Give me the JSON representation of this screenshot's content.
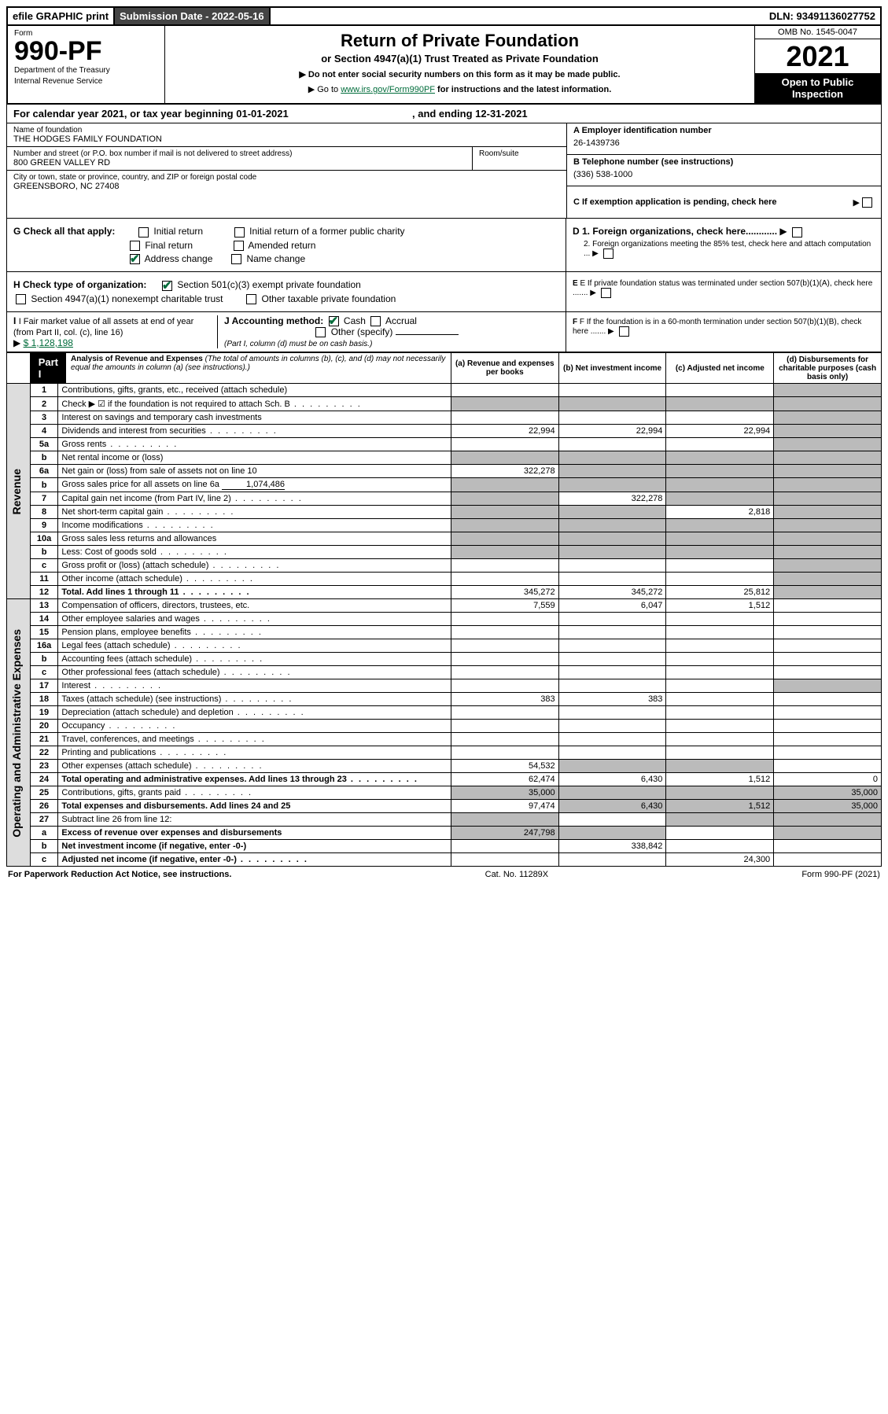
{
  "topbar": {
    "efile": "efile GRAPHIC print",
    "submission_label": "Submission Date - 2022-05-16",
    "dln": "DLN: 93491136027752"
  },
  "header": {
    "form_word": "Form",
    "form_number": "990-PF",
    "dept": "Department of the Treasury",
    "irs": "Internal Revenue Service",
    "title": "Return of Private Foundation",
    "subtitle": "or Section 4947(a)(1) Trust Treated as Private Foundation",
    "note1": "▶ Do not enter social security numbers on this form as it may be made public.",
    "note2_prefix": "▶ Go to ",
    "note2_link": "www.irs.gov/Form990PF",
    "note2_suffix": " for instructions and the latest information.",
    "omb": "OMB No. 1545-0047",
    "year": "2021",
    "open": "Open to Public Inspection"
  },
  "calendar": {
    "text_prefix": "For calendar year 2021, or tax year beginning ",
    "begin": "01-01-2021",
    "mid": " , and ending ",
    "end": "12-31-2021"
  },
  "id": {
    "name_lbl": "Name of foundation",
    "name": "THE HODGES FAMILY FOUNDATION",
    "addr_lbl": "Number and street (or P.O. box number if mail is not delivered to street address)",
    "addr": "800 GREEN VALLEY RD",
    "room_lbl": "Room/suite",
    "city_lbl": "City or town, state or province, country, and ZIP or foreign postal code",
    "city": "GREENSBORO, NC  27408",
    "a_lbl": "A Employer identification number",
    "a_val": "26-1439736",
    "b_lbl": "B Telephone number (see instructions)",
    "b_val": "(336) 538-1000",
    "c_lbl": "C If exemption application is pending, check here"
  },
  "checks": {
    "g_lbl": "G Check all that apply:",
    "g_initial": "Initial return",
    "g_initial_former": "Initial return of a former public charity",
    "g_final": "Final return",
    "g_amended": "Amended return",
    "g_address": "Address change",
    "g_name": "Name change",
    "h_lbl": "H Check type of organization:",
    "h_501c3": "Section 501(c)(3) exempt private foundation",
    "h_4947": "Section 4947(a)(1) nonexempt charitable trust",
    "h_other": "Other taxable private foundation",
    "i_lbl": "I Fair market value of all assets at end of year (from Part II, col. (c), line 16)",
    "i_val": "$  1,128,198",
    "j_lbl": "J Accounting method:",
    "j_cash": "Cash",
    "j_accrual": "Accrual",
    "j_other": "Other (specify)",
    "j_note": "(Part I, column (d) must be on cash basis.)",
    "d1": "D 1. Foreign organizations, check here............",
    "d2": "2. Foreign organizations meeting the 85% test, check here and attach computation ...",
    "e": "E  If private foundation status was terminated under section 507(b)(1)(A), check here .......",
    "f": "F  If the foundation is in a 60-month termination under section 507(b)(1)(B), check here ......."
  },
  "part1": {
    "tab": "Part I",
    "title": "Analysis of Revenue and Expenses",
    "note": "(The total of amounts in columns (b), (c), and (d) may not necessarily equal the amounts in column (a) (see instructions).)",
    "col_a": "(a) Revenue and expenses per books",
    "col_b": "(b) Net investment income",
    "col_c": "(c) Adjusted net income",
    "col_d": "(d) Disbursements for charitable purposes (cash basis only)",
    "side_rev": "Revenue",
    "side_exp": "Operating and Administrative Expenses"
  },
  "rows": [
    {
      "n": "1",
      "d": "Contributions, gifts, grants, etc., received (attach schedule)"
    },
    {
      "n": "2",
      "d": "Check ▶ ☑ if the foundation is not required to attach Sch. B",
      "checked": true,
      "dots": true,
      "bold_part": "not"
    },
    {
      "n": "3",
      "d": "Interest on savings and temporary cash investments"
    },
    {
      "n": "4",
      "d": "Dividends and interest from securities",
      "dots": true,
      "a": "22,994",
      "b": "22,994",
      "c": "22,994"
    },
    {
      "n": "5a",
      "d": "Gross rents",
      "dots": true
    },
    {
      "n": "b",
      "d": "Net rental income or (loss)",
      "underline": true
    },
    {
      "n": "6a",
      "d": "Net gain or (loss) from sale of assets not on line 10",
      "a": "322,278"
    },
    {
      "n": "b",
      "d": "Gross sales price for all assets on line 6a",
      "inline_val": "1,074,486"
    },
    {
      "n": "7",
      "d": "Capital gain net income (from Part IV, line 2)",
      "dots": true,
      "b": "322,278"
    },
    {
      "n": "8",
      "d": "Net short-term capital gain",
      "dots": true,
      "c": "2,818"
    },
    {
      "n": "9",
      "d": "Income modifications",
      "dots": true
    },
    {
      "n": "10a",
      "d": "Gross sales less returns and allowances",
      "underline": true
    },
    {
      "n": "b",
      "d": "Less: Cost of goods sold",
      "dots": true,
      "underline": true
    },
    {
      "n": "c",
      "d": "Gross profit or (loss) (attach schedule)",
      "dots": true
    },
    {
      "n": "11",
      "d": "Other income (attach schedule)",
      "dots": true
    },
    {
      "n": "12",
      "d": "Total. Add lines 1 through 11",
      "dots": true,
      "bold": true,
      "a": "345,272",
      "b": "345,272",
      "c": "25,812"
    },
    {
      "n": "13",
      "d": "Compensation of officers, directors, trustees, etc.",
      "a": "7,559",
      "b": "6,047",
      "c": "1,512"
    },
    {
      "n": "14",
      "d": "Other employee salaries and wages",
      "dots": true
    },
    {
      "n": "15",
      "d": "Pension plans, employee benefits",
      "dots": true
    },
    {
      "n": "16a",
      "d": "Legal fees (attach schedule)",
      "dots": true
    },
    {
      "n": "b",
      "d": "Accounting fees (attach schedule)",
      "dots": true
    },
    {
      "n": "c",
      "d": "Other professional fees (attach schedule)",
      "dots": true
    },
    {
      "n": "17",
      "d": "Interest",
      "dots": true
    },
    {
      "n": "18",
      "d": "Taxes (attach schedule) (see instructions)",
      "dots": true,
      "a": "383",
      "b": "383"
    },
    {
      "n": "19",
      "d": "Depreciation (attach schedule) and depletion",
      "dots": true
    },
    {
      "n": "20",
      "d": "Occupancy",
      "dots": true
    },
    {
      "n": "21",
      "d": "Travel, conferences, and meetings",
      "dots": true
    },
    {
      "n": "22",
      "d": "Printing and publications",
      "dots": true
    },
    {
      "n": "23",
      "d": "Other expenses (attach schedule)",
      "dots": true,
      "a": "54,532"
    },
    {
      "n": "24",
      "d": "Total operating and administrative expenses. Add lines 13 through 23",
      "dots": true,
      "bold": true,
      "a": "62,474",
      "b": "6,430",
      "c": "1,512",
      "dd": "0"
    },
    {
      "n": "25",
      "d": "Contributions, gifts, grants paid",
      "dots": true,
      "a": "35,000",
      "dd": "35,000"
    },
    {
      "n": "26",
      "d": "Total expenses and disbursements. Add lines 24 and 25",
      "bold": true,
      "a": "97,474",
      "b": "6,430",
      "c": "1,512",
      "dd": "35,000"
    },
    {
      "n": "27",
      "d": "Subtract line 26 from line 12:"
    },
    {
      "n": "a",
      "d": "Excess of revenue over expenses and disbursements",
      "bold": true,
      "a": "247,798"
    },
    {
      "n": "b",
      "d": "Net investment income (if negative, enter -0-)",
      "bold": true,
      "b": "338,842"
    },
    {
      "n": "c",
      "d": "Adjusted net income (if negative, enter -0-)",
      "bold": true,
      "dots": true,
      "c": "24,300"
    }
  ],
  "shading": {
    "row_2_end": [
      "a",
      "b",
      "c",
      "d"
    ],
    "6a_bcd": true,
    "b_6b_all": true,
    "7_a": true,
    "8_ab": true,
    "9_ab": true,
    "10a_all": true,
    "10b_all": true,
    "12_d": true,
    "19_d": true,
    "25_bc": true,
    "27_all": true,
    "a_bcd": true,
    "b_acd": true,
    "c_abd": true
  },
  "footer": {
    "left": "For Paperwork Reduction Act Notice, see instructions.",
    "mid": "Cat. No. 11289X",
    "right": "Form 990-PF (2021)"
  }
}
